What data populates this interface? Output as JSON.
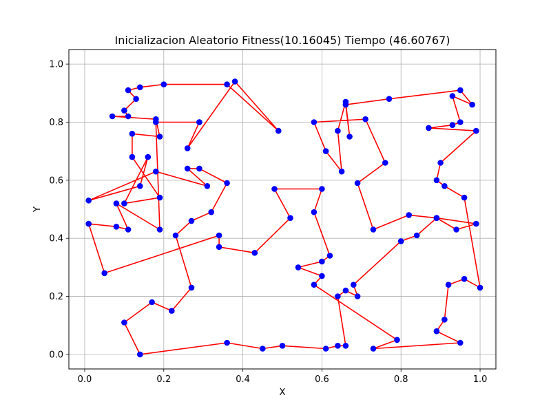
{
  "chart_data": {
    "type": "line",
    "title": "Inicializacion Aleatorio Fitness(10.16045) Tiempo (46.60767)",
    "xlabel": "X",
    "ylabel": "Y",
    "xlim": [
      -0.04,
      1.04
    ],
    "ylim": [
      -0.05,
      1.05
    ],
    "xticks": [
      "0.0",
      "0.2",
      "0.4",
      "0.6",
      "0.8",
      "1.0"
    ],
    "yticks": [
      "0.0",
      "0.2",
      "0.4",
      "0.6",
      "0.8",
      "1.0"
    ],
    "grid": true,
    "series": [
      {
        "line_color": "#ff0000",
        "marker_color": "#0000ff",
        "x": [
          0.29,
          0.26,
          0.38,
          0.49,
          0.36,
          0.2,
          0.14,
          0.11,
          0.13,
          0.1,
          0.11,
          0.07,
          0.18,
          0.19,
          0.12,
          0.12,
          0.19,
          0.1,
          0.16,
          0.14,
          0.01,
          0.18,
          0.31,
          0.26,
          0.29,
          0.36,
          0.32,
          0.27,
          0.23,
          0.27,
          0.22,
          0.17,
          0.1,
          0.14,
          0.36,
          0.45,
          0.5,
          0.61,
          0.64,
          0.66,
          0.64,
          0.66,
          0.69,
          0.68,
          0.8,
          0.84,
          0.89,
          0.99,
          0.94,
          0.89,
          0.82,
          0.73,
          0.69,
          0.76,
          0.71,
          0.58,
          0.61,
          0.65,
          0.64,
          0.66,
          0.67,
          0.66,
          0.77,
          0.95,
          0.98,
          0.93,
          0.95,
          0.93,
          0.87,
          0.99,
          0.9,
          0.89,
          0.91,
          0.96,
          1.0,
          0.96,
          0.92,
          0.91,
          0.89,
          0.95,
          0.73,
          0.79,
          0.58,
          0.6,
          0.54,
          0.6,
          0.62,
          0.58,
          0.6,
          0.48,
          0.52,
          0.43,
          0.34,
          0.34,
          0.05,
          0.01,
          0.08,
          0.11,
          0.08,
          0.19,
          0.18,
          0.29
        ],
        "y": [
          0.8,
          0.71,
          0.94,
          0.77,
          0.93,
          0.93,
          0.92,
          0.91,
          0.88,
          0.84,
          0.82,
          0.82,
          0.81,
          0.75,
          0.76,
          0.68,
          0.54,
          0.52,
          0.68,
          0.58,
          0.53,
          0.63,
          0.58,
          0.64,
          0.64,
          0.59,
          0.49,
          0.46,
          0.41,
          0.23,
          0.15,
          0.18,
          0.11,
          0.0,
          0.04,
          0.02,
          0.03,
          0.02,
          0.03,
          0.03,
          0.2,
          0.22,
          0.2,
          0.24,
          0.39,
          0.41,
          0.47,
          0.45,
          0.43,
          0.47,
          0.48,
          0.43,
          0.59,
          0.66,
          0.81,
          0.8,
          0.7,
          0.63,
          0.77,
          0.87,
          0.75,
          0.86,
          0.88,
          0.91,
          0.86,
          0.89,
          0.8,
          0.79,
          0.78,
          0.77,
          0.66,
          0.6,
          0.58,
          0.54,
          0.23,
          0.26,
          0.24,
          0.12,
          0.08,
          0.04,
          0.02,
          0.05,
          0.24,
          0.27,
          0.3,
          0.32,
          0.34,
          0.49,
          0.57,
          0.57,
          0.47,
          0.35,
          0.37,
          0.41,
          0.28,
          0.45,
          0.44,
          0.43,
          0.52,
          0.43,
          0.8,
          0.8
        ]
      }
    ]
  }
}
